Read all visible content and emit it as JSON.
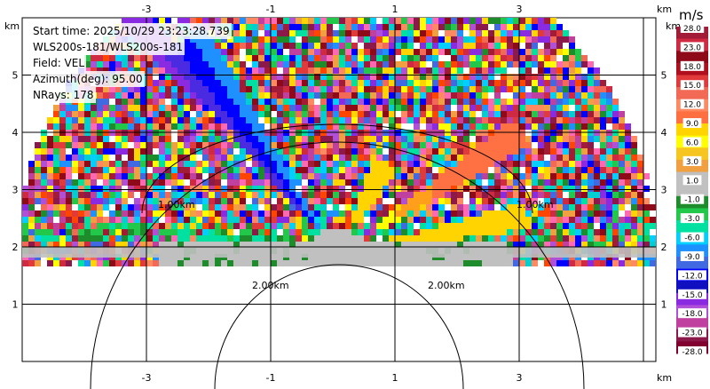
{
  "info": {
    "start_time": "Start time: 2025/10/29 23:23:28.739",
    "station": "WLS200s-181/WLS200s-181",
    "field": "Field: VEL",
    "azimuth": "Azimuth(deg): 95.00",
    "nrays": "NRays: 178"
  },
  "axes": {
    "x_ticks": [
      "-3",
      "-1",
      "1",
      "3"
    ],
    "y_ticks": [
      "1",
      "2",
      "3",
      "4",
      "5"
    ],
    "unit": "km"
  },
  "range_rings": {
    "label_inner": "1.00km",
    "label_outer": "2.00km"
  },
  "colorbar": {
    "unit": "m/s",
    "labels": [
      "28.0",
      "23.0",
      "18.0",
      "15.0",
      "12.0",
      "9.0",
      "6.0",
      "3.0",
      "1.0",
      "-1.0",
      "-3.0",
      "-6.0",
      "-9.0",
      "-12.0",
      "-15.0",
      "-18.0",
      "-23.0",
      "-28.0"
    ],
    "colors": [
      "#a31c37",
      "#cf2a42",
      "#8e0a18",
      "#b0101e",
      "#e03a3a",
      "#f26a55",
      "#ff8a62",
      "#ff6f3f",
      "#ffd400",
      "#ffff00",
      "#f7c520",
      "#f0a040",
      "#c0c0c0",
      "#c0c0c0",
      "#1e8c2a",
      "#21c84a",
      "#00e0a0",
      "#00cfff",
      "#1e90ff",
      "#4169e1",
      "#0000ff",
      "#1010c0",
      "#8a2be2",
      "#b04fd8",
      "#c040a0",
      "#8b1a4a",
      "#800030"
    ]
  }
}
